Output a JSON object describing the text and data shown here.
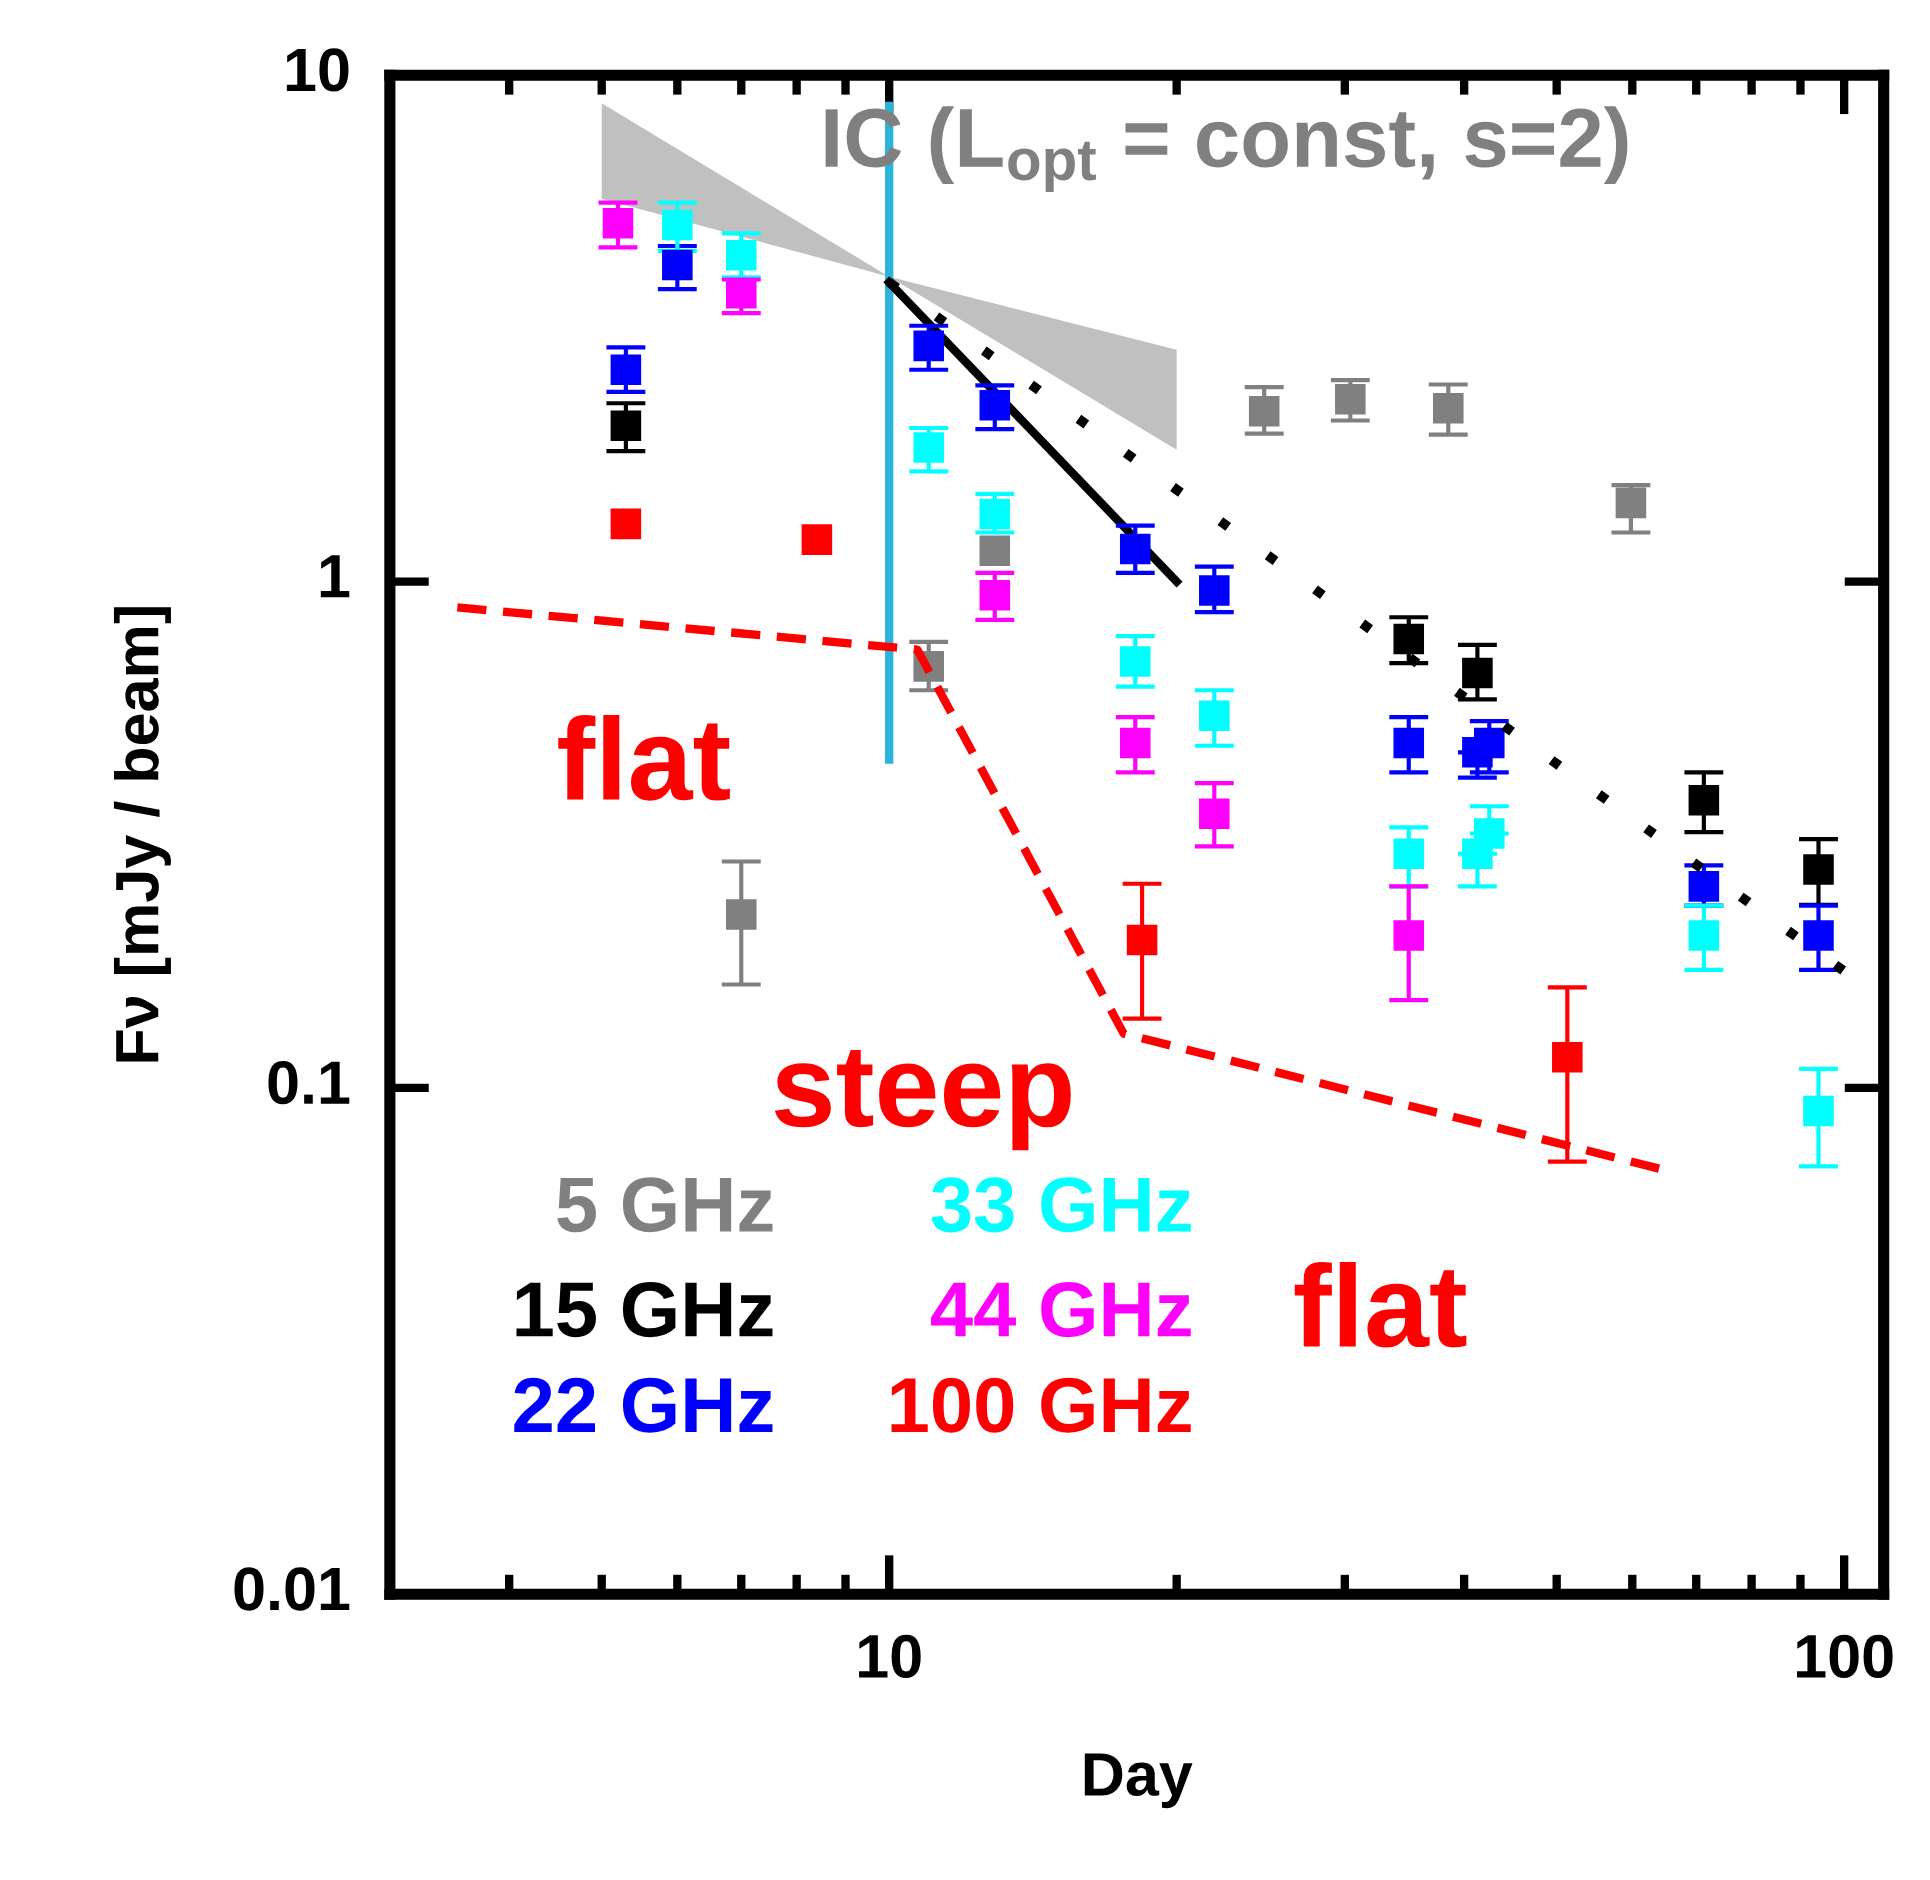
{
  "chart_data": {
    "type": "scatter",
    "xlabel": "Day",
    "ylabel": "Fν [mJy / beam]",
    "log": "xy",
    "xlim": [
      3,
      110
    ],
    "ylim": [
      0.01,
      10
    ],
    "xticks": [
      10,
      100
    ],
    "yticks": [
      0.01,
      0.1,
      1,
      10
    ],
    "marker": "square",
    "series": [
      {
        "type": "line",
        "marker": "none",
        "color": "#c0c0c0",
        "x": [
          5,
          10,
          20
        ],
        "values": [
          null,
          null,
          null
        ],
        "lower": [
          5.7,
          4.0,
          1.82
        ],
        "upper": [
          8.8,
          4.0,
          2.87
        ]
      },
      {
        "type": "line",
        "marker": "none",
        "color": "#2ab4d9",
        "line_style": "solid",
        "x": [
          10,
          10
        ],
        "values": [
          8.7,
          0.445
        ]
      },
      {
        "type": "line",
        "marker": "none",
        "color": "#ff0000",
        "line_style": "dashed",
        "x": [
          3.53,
          10.7,
          17.6,
          65.9
        ],
        "values": [
          0.889,
          0.734,
          0.128,
          0.0683
        ]
      },
      {
        "type": "line",
        "marker": "none",
        "color": "#000000",
        "line_style": "solid",
        "x": [
          10,
          20
        ],
        "values": [
          3.9,
          1.0
        ]
      },
      {
        "type": "line",
        "marker": "none",
        "color": "#000000",
        "line_style": "dotted",
        "x": [
          10,
          100
        ],
        "values": [
          3.9,
          0.17
        ]
      },
      {
        "name": "5 GHz",
        "color": "#808080",
        "x": [
          7.0,
          11.0,
          12.9,
          24.7,
          30.4,
          38.5,
          59.8
        ],
        "values": [
          0.22,
          0.68,
          1.15,
          2.17,
          2.29,
          2.2,
          1.43
        ],
        "errors": [
          [
            0.16,
            0.28
          ],
          [
            0.61,
            0.76
          ],
          null,
          [
            1.96,
            2.42
          ],
          [
            2.08,
            2.5
          ],
          [
            1.95,
            2.45
          ],
          [
            1.25,
            1.55
          ]
        ]
      },
      {
        "name": "15 GHz",
        "color": "#000000",
        "x": [
          5.3,
          35.0,
          41.3,
          71.3,
          94
        ],
        "values": [
          2.03,
          0.77,
          0.66,
          0.37,
          0.27
        ],
        "errors": [
          [
            1.81,
            2.25
          ],
          [
            0.69,
            0.85
          ],
          [
            0.585,
            0.75
          ],
          [
            0.32,
            0.42
          ],
          [
            0.23,
            0.31
          ]
        ]
      },
      {
        "name": "22 GHz",
        "color": "#0000ff",
        "x": [
          5.3,
          6.0,
          11.0,
          12.9,
          18.1,
          21.9,
          35.0,
          41.3,
          42.5,
          71.3,
          94
        ],
        "values": [
          2.62,
          4.22,
          2.92,
          2.23,
          1.16,
          0.96,
          0.48,
          0.46,
          0.48,
          0.25,
          0.2
        ],
        "errors": [
          [
            2.37,
            2.9
          ],
          [
            3.78,
            4.6
          ],
          [
            2.62,
            3.2
          ],
          [
            2.0,
            2.44
          ],
          [
            1.04,
            1.29
          ],
          [
            0.87,
            1.07
          ],
          [
            0.42,
            0.54
          ],
          [
            0.41,
            0.46
          ],
          [
            0.42,
            0.53
          ],
          [
            0.229,
            0.275
          ],
          [
            0.171,
            0.229
          ]
        ]
      },
      {
        "name": "33 GHz",
        "color": "#00ffff",
        "x": [
          6.0,
          7.0,
          11.0,
          12.9,
          18.1,
          21.9,
          35.0,
          41.3,
          42.5,
          71.3,
          94
        ],
        "values": [
          5.06,
          4.41,
          1.84,
          1.36,
          0.695,
          0.543,
          0.29,
          0.29,
          0.318,
          0.2,
          0.09
        ],
        "errors": [
          [
            4.5,
            5.6
          ],
          [
            3.99,
            4.87
          ],
          [
            1.65,
            2.01
          ],
          [
            1.25,
            1.49
          ],
          [
            0.62,
            0.78
          ],
          [
            0.474,
            0.61
          ],
          [
            0.25,
            0.327
          ],
          [
            0.25,
            0.29
          ],
          [
            0.318,
            0.36
          ],
          [
            0.171,
            0.229
          ],
          [
            0.07,
            0.109
          ]
        ]
      },
      {
        "name": "44 GHz",
        "color": "#ff00ff",
        "x": [
          5.2,
          7.0,
          12.9,
          18.1,
          21.9,
          35.0
        ],
        "values": [
          5.1,
          3.71,
          0.94,
          0.48,
          0.348,
          0.2
        ],
        "errors": [
          [
            4.57,
            5.6
          ],
          [
            3.39,
            3.95
          ],
          [
            0.84,
            1.04
          ],
          [
            0.42,
            0.54
          ],
          [
            0.3,
            0.4
          ],
          [
            0.149,
            0.25
          ]
        ]
      },
      {
        "name": "100 GHz",
        "color": "#ff0000",
        "x": [
          5.3,
          8.4,
          18.4,
          51.3
        ],
        "values": [
          1.3,
          1.21,
          0.196,
          0.115
        ],
        "errors": [
          null,
          null,
          [
            0.137,
            0.253
          ],
          [
            0.0715,
            0.158
          ]
        ]
      }
    ],
    "annotations": [
      "IC (L$_{opt}$ = const, s=2)",
      "flat",
      "steep",
      "flat"
    ]
  }
}
